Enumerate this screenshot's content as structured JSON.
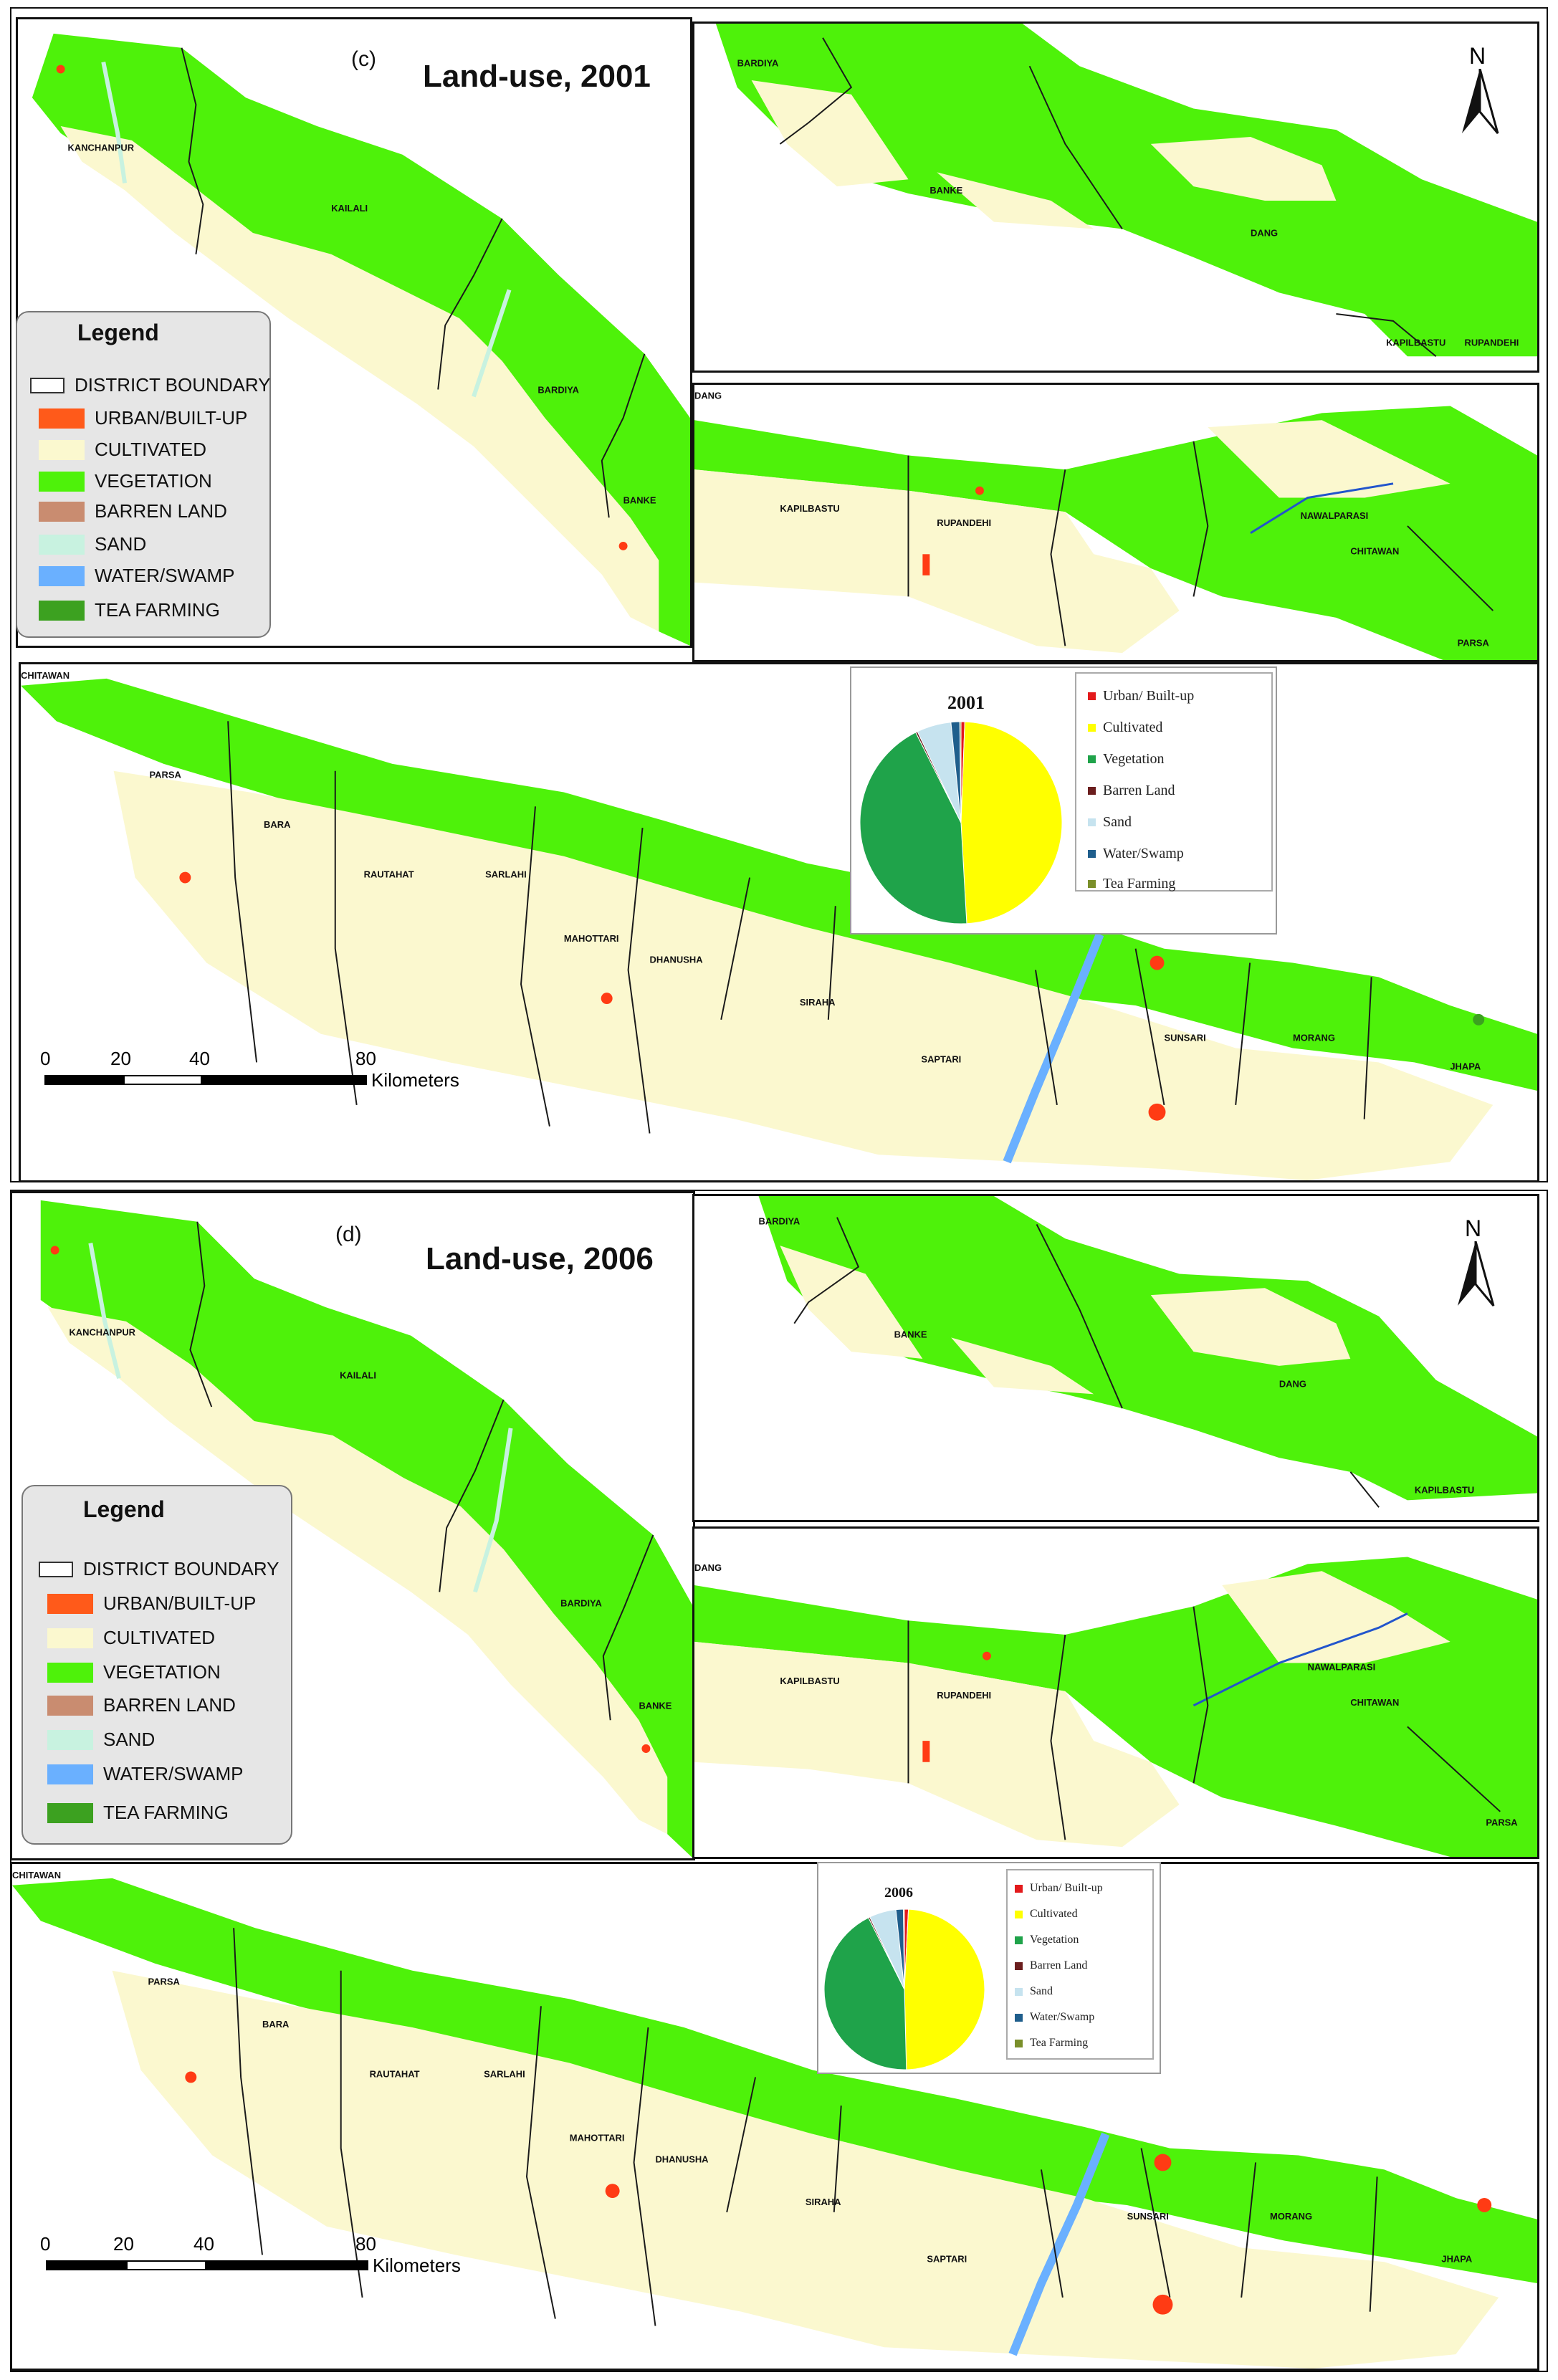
{
  "colors": {
    "vegetation": "#4ef20a",
    "cultivated": "#fbf8cf",
    "urban": "#ff3b14",
    "barren": "#c98c70",
    "sand": "#c8f2e0",
    "water": "#6ab0ff",
    "tea": "#3ca120",
    "boundary": "#1a1a1a"
  },
  "legend": {
    "title": "Legend",
    "items": [
      {
        "label": "DISTRICT BOUNDARY",
        "icon": "boundary"
      },
      {
        "label": "URBAN/BUILT-UP",
        "icon": "urban"
      },
      {
        "label": "CULTIVATED",
        "icon": "cultivated"
      },
      {
        "label": "VEGETATION",
        "icon": "vegetation"
      },
      {
        "label": "BARREN LAND",
        "icon": "barren"
      },
      {
        "label": "SAND",
        "icon": "sand"
      },
      {
        "label": "WATER/SWAMP",
        "icon": "water"
      },
      {
        "label": "TEA FARMING",
        "icon": "tea"
      }
    ]
  },
  "north_label": "N",
  "scale": {
    "ticks": [
      "0",
      "20",
      "40",
      "80"
    ],
    "unit": "Kilometers"
  },
  "maps": [
    {
      "panel_label": "(c)",
      "title": "Land-use, 2001",
      "districts_west": [
        "KANCHANPUR",
        "KAILALI",
        "BARDIYA",
        "BANKE"
      ],
      "districts_mid_top": [
        "BARDIYA",
        "BANKE",
        "DANG",
        "KAPILBASTU",
        "RUPANDEHI"
      ],
      "districts_mid": [
        "DANG",
        "KAPILBASTU",
        "RUPANDEHI",
        "NAWALPARASI",
        "CHITAWAN",
        "PARSA"
      ],
      "districts_east": [
        "CHITAWAN",
        "PARSA",
        "BARA",
        "RAUTAHAT",
        "SARLAHI",
        "MAHOTTARI",
        "DHANUSHA",
        "SIRAHA",
        "SAPTARI",
        "SUNSARI",
        "MORANG",
        "JHAPA"
      ],
      "pie": {
        "year": "2001",
        "legend": [
          "Urban/ Built-up",
          "Cultivated",
          "Vegetation",
          "Barren Land",
          "Sand",
          "Water/Swamp",
          "Tea Farming"
        ]
      }
    },
    {
      "panel_label": "(d)",
      "title": "Land-use, 2006",
      "districts_west": [
        "KANCHANPUR",
        "KAILALI",
        "BARDIYA",
        "BANKE"
      ],
      "districts_mid_top": [
        "BARDIYA",
        "BANKE",
        "DANG",
        "KAPILBASTU"
      ],
      "districts_mid": [
        "DANG",
        "KAPILBASTU",
        "RUPANDEHI",
        "NAWALPARASI",
        "CHITAWAN",
        "PARSA"
      ],
      "districts_east": [
        "CHITAWAN",
        "PARSA",
        "BARA",
        "RAUTAHAT",
        "SARLAHI",
        "MAHOTTARI",
        "DHANUSHA",
        "SIRAHA",
        "SAPTARI",
        "SUNSARI",
        "MORANG",
        "JHAPA"
      ],
      "pie": {
        "year": "2006",
        "legend": [
          "Urban/ Built-up",
          "Cultivated",
          "Vegetation",
          "Barren Land",
          "Sand",
          "Water/Swamp",
          "Tea Farming"
        ]
      }
    }
  ],
  "chart_data": [
    {
      "type": "pie",
      "title": "2001",
      "categories": [
        "Urban/ Built-up",
        "Cultivated",
        "Vegetation",
        "Barren Land",
        "Sand",
        "Water/Swamp",
        "Tea Farming"
      ],
      "values": [
        0.6,
        48.5,
        43.5,
        0.3,
        5.5,
        1.4,
        0.2
      ],
      "colors": [
        "#e31a1c",
        "#ffff00",
        "#1fa34a",
        "#6b1e1e",
        "#c6e3ef",
        "#1f5e8c",
        "#7a8f2a"
      ]
    },
    {
      "type": "pie",
      "title": "2006",
      "categories": [
        "Urban/ Built-up",
        "Cultivated",
        "Vegetation",
        "Barren Land",
        "Sand",
        "Water/Swamp",
        "Tea Farming"
      ],
      "values": [
        0.8,
        48.8,
        43.0,
        0.3,
        5.4,
        1.5,
        0.2
      ],
      "colors": [
        "#e31a1c",
        "#ffff00",
        "#1fa34a",
        "#6b1e1e",
        "#c6e3ef",
        "#1f5e8c",
        "#7a8f2a"
      ]
    }
  ]
}
